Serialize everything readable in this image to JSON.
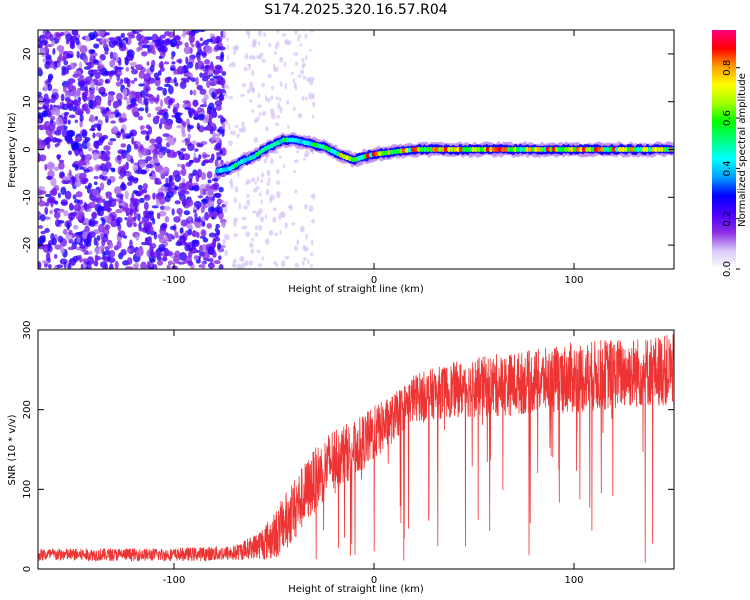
{
  "chart_data": [
    {
      "type": "heatmap",
      "title": "S174.2025.320.16.57.R04",
      "xlabel": "Height of straight line (km)",
      "ylabel": "Frequency (Hz)",
      "xlim": [
        -168,
        150
      ],
      "ylim": [
        -25,
        25
      ],
      "xticks": [
        -100,
        0,
        100
      ],
      "yticks": [
        -20,
        -10,
        0,
        10,
        20
      ],
      "colorbar": {
        "label": "Normalized spectral amplitude",
        "range": [
          0.0,
          0.95
        ],
        "ticks": [
          0.0,
          0.2,
          0.4,
          0.6,
          0.8
        ],
        "colors": [
          "#ffffff",
          "#d8c8f8",
          "#8a2be2",
          "#4b00ff",
          "#0000ff",
          "#00a0ff",
          "#00ffff",
          "#00ff80",
          "#00ff00",
          "#a0ff00",
          "#ffff00",
          "#ffa000",
          "#ff0000",
          "#ff0080"
        ]
      },
      "ridge": {
        "description_values": "peak frequency (Hz) vs height (km)",
        "x": [
          -78,
          -72,
          -66,
          -60,
          -55,
          -50,
          -45,
          -40,
          -35,
          -30,
          -25,
          -20,
          -15,
          -10,
          -5,
          0,
          10,
          20,
          40,
          60,
          80,
          100,
          120,
          150
        ],
        "y": [
          -4.5,
          -4,
          -2.5,
          -1.5,
          0,
          1,
          2,
          2,
          1.5,
          1,
          0.5,
          -0.5,
          -1.5,
          -2.2,
          -1.5,
          -1,
          -0.5,
          0,
          0,
          0,
          0,
          0,
          0,
          0
        ]
      },
      "noise_region": {
        "x_from": -168,
        "x_to": -75,
        "dominant_values": [
          0.1,
          0.3
        ]
      }
    },
    {
      "type": "line",
      "xlabel": "Height of straight line (km)",
      "ylabel": "SNR (10 * v/v)",
      "xlim": [
        -168,
        150
      ],
      "ylim": [
        0,
        300
      ],
      "xticks": [
        -100,
        0,
        100
      ],
      "yticks": [
        0,
        100,
        200,
        300
      ],
      "series": [
        {
          "name": "SNR",
          "color": "#ee3333",
          "envelope_x": [
            -168,
            -100,
            -70,
            -60,
            -50,
            -40,
            -30,
            -20,
            -10,
            0,
            10,
            20,
            40,
            60,
            80,
            100,
            120,
            150
          ],
          "envelope_mean": [
            18,
            18,
            20,
            28,
            40,
            75,
            110,
            140,
            150,
            170,
            190,
            215,
            225,
            230,
            235,
            240,
            245,
            250
          ],
          "envelope_spread": [
            8,
            8,
            10,
            15,
            30,
            40,
            40,
            40,
            35,
            35,
            30,
            30,
            35,
            40,
            40,
            45,
            45,
            45
          ]
        }
      ]
    }
  ]
}
